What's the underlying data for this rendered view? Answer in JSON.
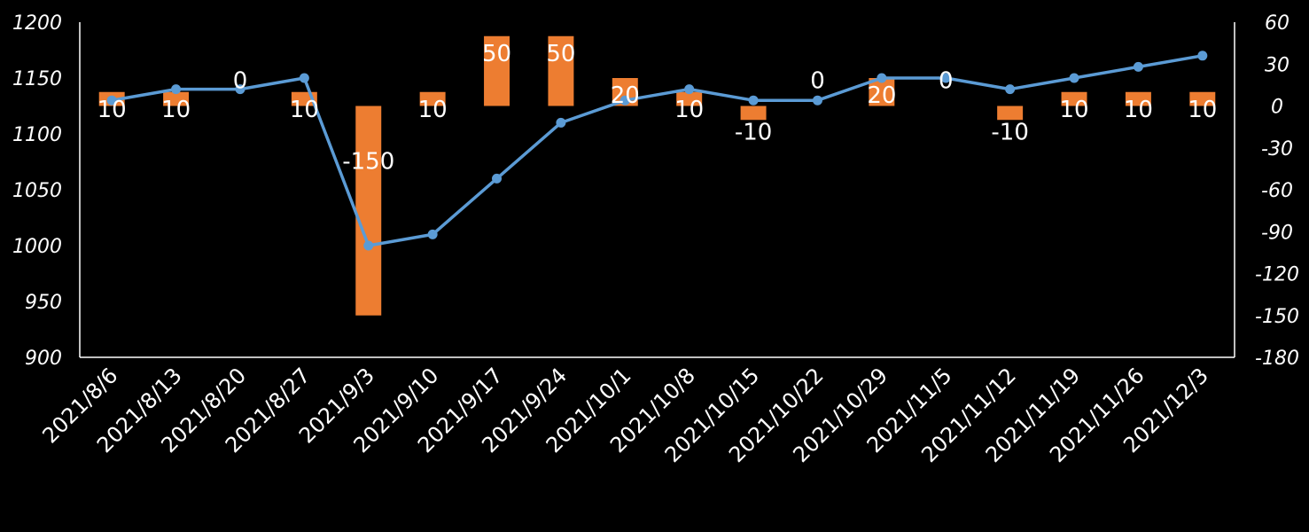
{
  "chart_data": {
    "type": "bar+line",
    "title": "",
    "categories": [
      "2021/8/6",
      "2021/8/13",
      "2021/8/20",
      "2021/8/27",
      "2021/9/3",
      "2021/9/10",
      "2021/9/17",
      "2021/9/24",
      "2021/10/1",
      "2021/10/8",
      "2021/10/15",
      "2021/10/22",
      "2021/10/29",
      "2021/11/5",
      "2021/11/12",
      "2021/11/19",
      "2021/11/26",
      "2021/12/3"
    ],
    "series": [
      {
        "type": "bar",
        "axis": "right",
        "color": "#ED7D31",
        "values": [
          10,
          10,
          0,
          10,
          -150,
          10,
          50,
          50,
          20,
          10,
          -10,
          0,
          20,
          0,
          -10,
          10,
          10,
          10
        ],
        "labels": [
          "10",
          "10",
          "0",
          "10",
          "-150",
          "10",
          "50",
          "50",
          "20",
          "10",
          "-10",
          "0",
          "20",
          "0",
          "-10",
          "10",
          "10",
          "10"
        ]
      },
      {
        "type": "line",
        "axis": "left",
        "color": "#5B9BD5",
        "values": [
          1130,
          1140,
          1140,
          1150,
          1000,
          1010,
          1060,
          1110,
          1130,
          1140,
          1130,
          1130,
          1150,
          1150,
          1140,
          1150,
          1160,
          1170
        ]
      }
    ],
    "y_left": {
      "min": 900,
      "max": 1200,
      "ticks": [
        "1200",
        "1150",
        "1100",
        "1050",
        "1000",
        "950",
        "900"
      ]
    },
    "y_right": {
      "min": -180,
      "max": 60,
      "ticks": [
        "60",
        "30",
        "0",
        "-30",
        "-60",
        "-90",
        "-120",
        "-150",
        "-180"
      ]
    },
    "grid": false,
    "legend": "none"
  }
}
